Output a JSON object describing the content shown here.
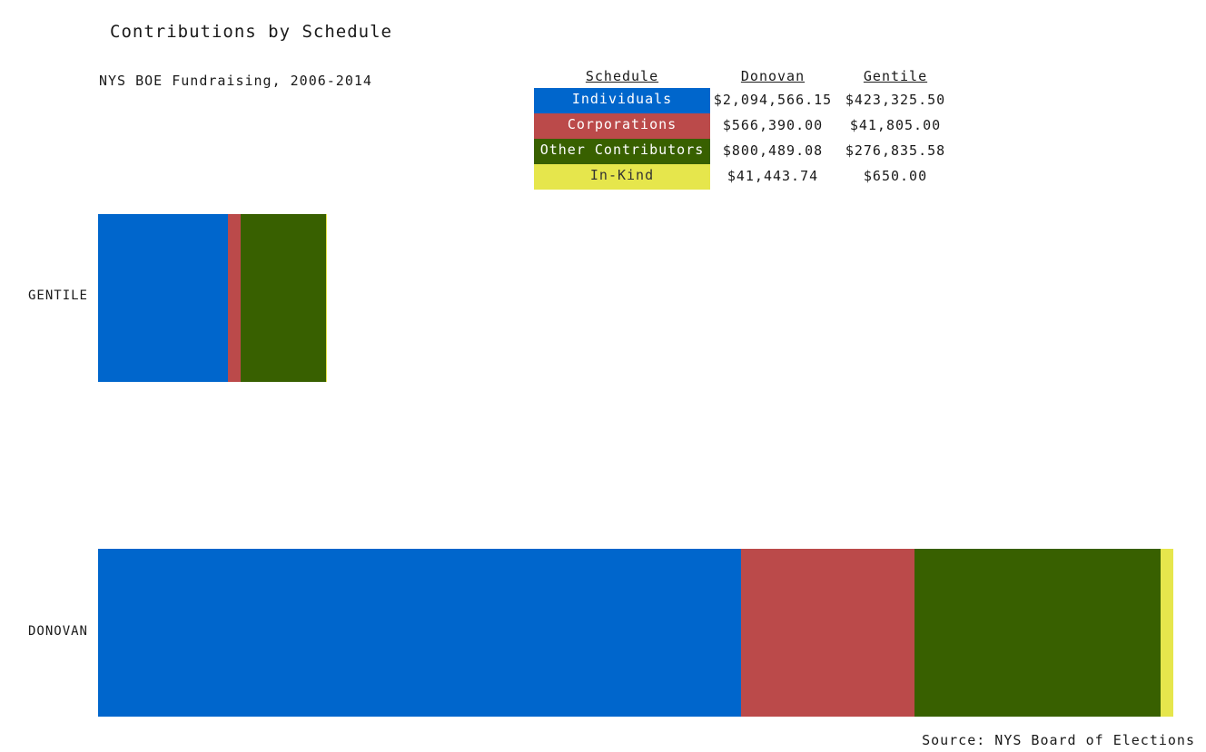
{
  "chart_data": {
    "type": "bar",
    "orientation": "horizontal",
    "stacked": true,
    "title": "Contributions by Schedule",
    "subtitle": "NYS BOE Fundraising, 2006-2014",
    "source": "Source: NYS Board of Elections",
    "categories": [
      "GENTILE",
      "DONOVAN"
    ],
    "series": [
      {
        "name": "Individuals",
        "color": "#0066cc",
        "values": [
          423325.5,
          2094566.15
        ]
      },
      {
        "name": "Corporations",
        "color": "#bb4a4a",
        "values": [
          41805.0,
          566390.0
        ]
      },
      {
        "name": "Other Contributors",
        "color": "#386000",
        "values": [
          276835.58,
          800489.08
        ]
      },
      {
        "name": "In-Kind",
        "color": "#e6e64c",
        "values": [
          650.0,
          41443.74
        ]
      }
    ],
    "grid": false,
    "legend": "top table"
  },
  "legend_table": {
    "headers": [
      "Schedule",
      "Donovan",
      "Gentile"
    ],
    "rows": [
      {
        "schedule": "Individuals",
        "donovan": "$2,094,566.15",
        "gentile": "$423,325.50",
        "color": "#0066cc",
        "text_color": "#ffffff"
      },
      {
        "schedule": "Corporations",
        "donovan": "$566,390.00",
        "gentile": "$41,805.00",
        "color": "#bb4a4a",
        "text_color": "#ffffff"
      },
      {
        "schedule": "Other Contributors",
        "donovan": "$800,489.08",
        "gentile": "$276,835.58",
        "color": "#386000",
        "text_color": "#ffffff"
      },
      {
        "schedule": "In-Kind",
        "donovan": "$41,443.74",
        "gentile": "$650.00",
        "color": "#e6e64c",
        "text_color": "#333333"
      }
    ]
  }
}
